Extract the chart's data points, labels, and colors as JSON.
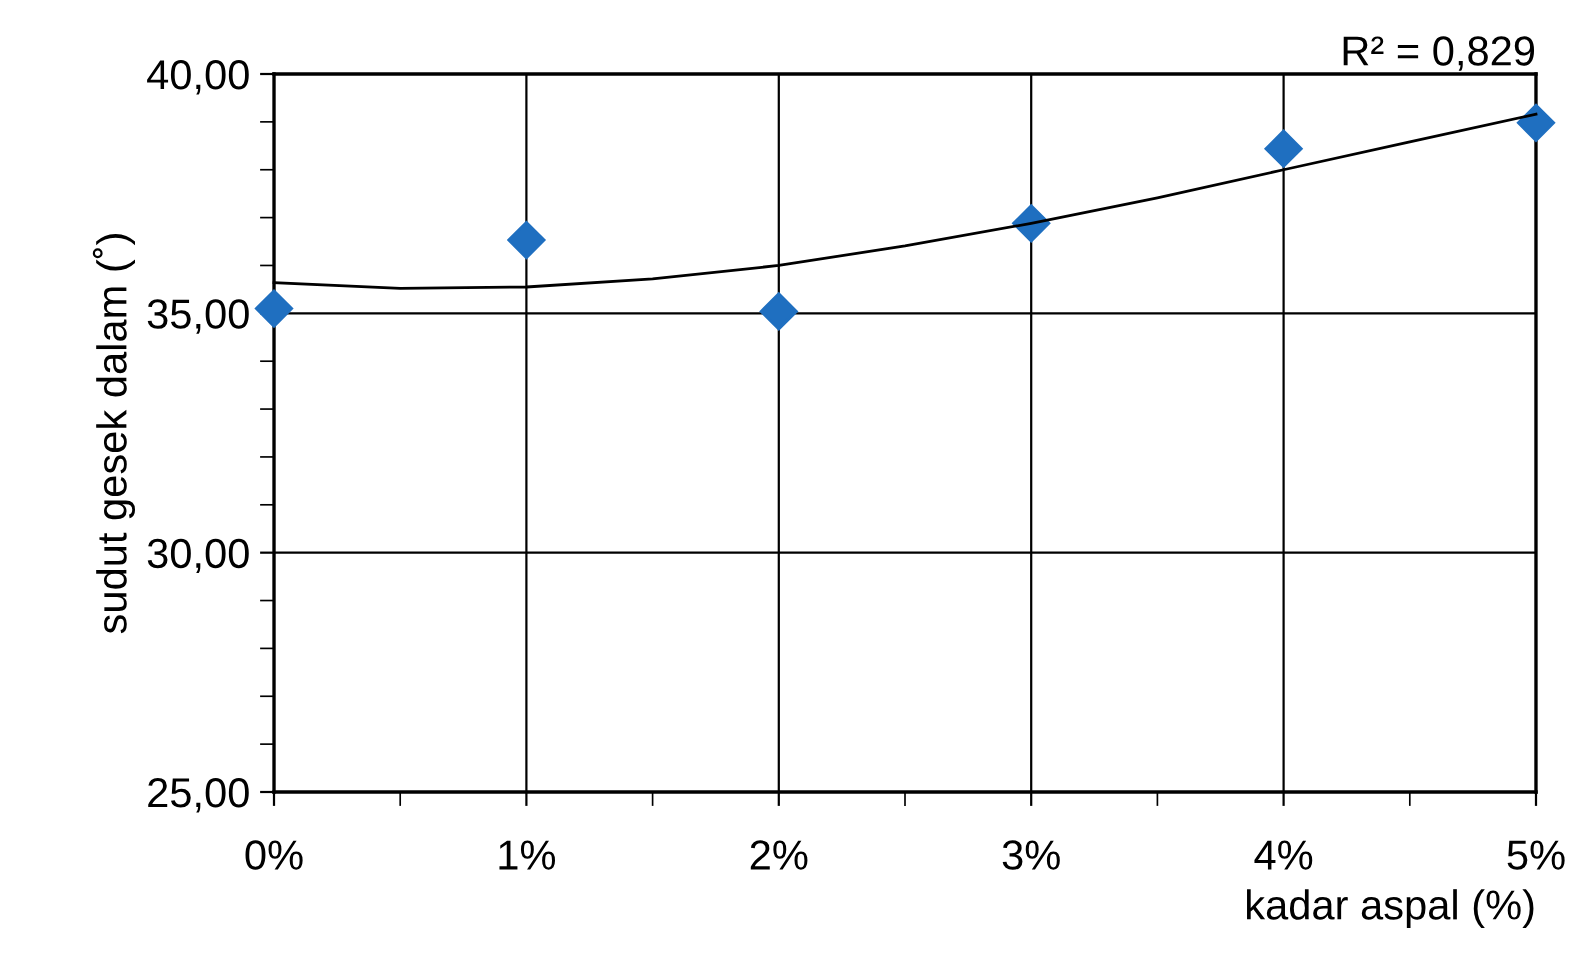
{
  "chart_data": {
    "type": "scatter",
    "xlabel": "kadar aspal (%)",
    "ylabel": "sudut gesek dalam (˚)",
    "x": [
      0,
      1,
      2,
      3,
      4,
      5
    ],
    "series": [
      {
        "color": "#1f6fc0",
        "marker": "diamond",
        "values": [
          35.1,
          36.53,
          35.04,
          36.88,
          38.44,
          38.98
        ]
      },
      {
        "type": "line",
        "color": "#000000",
        "marker": "none",
        "x": [
          0,
          0.5,
          1,
          1.5,
          2,
          2.5,
          3,
          3.5,
          4,
          4.5,
          5
        ],
        "values": [
          35.64,
          35.52,
          35.55,
          35.72,
          36.0,
          36.41,
          36.88,
          37.41,
          38.0,
          38.58,
          39.16
        ]
      }
    ],
    "annotations": [
      "R² = 0,829"
    ],
    "xlim": [
      0,
      5
    ],
    "xticks": [
      {
        "value": 0,
        "label": "0%"
      },
      {
        "value": 1,
        "label": "1%"
      },
      {
        "value": 2,
        "label": "2%"
      },
      {
        "value": 3,
        "label": "3%"
      },
      {
        "value": 4,
        "label": "4%"
      },
      {
        "value": 5,
        "label": "5%"
      }
    ],
    "ylim": [
      25,
      40
    ],
    "yticks": [
      {
        "value": 25,
        "label": "25,00"
      },
      {
        "value": 30,
        "label": "30,00"
      },
      {
        "value": 35,
        "label": "35,00"
      },
      {
        "value": 40,
        "label": "40,00"
      }
    ],
    "grid": true,
    "legend": false
  }
}
